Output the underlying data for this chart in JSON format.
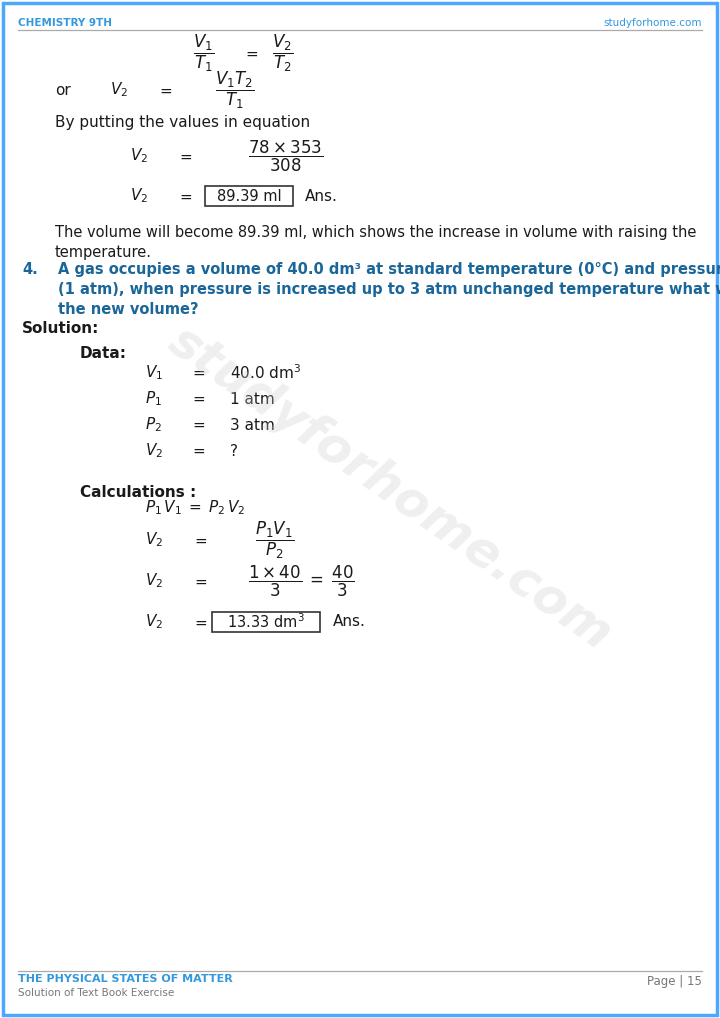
{
  "page_bg": "#ffffff",
  "border_color": "#4da6ff",
  "header_left": "CHEMISTRY 9TH",
  "header_right": "studyforhome.com",
  "header_color": "#3399dd",
  "footer_title": "THE PHYSICAL STATES OF MATTER",
  "footer_sub": "Solution of Text Book Exercise",
  "footer_page": "Page | 15",
  "footer_title_color": "#3399dd",
  "footer_sub_color": "#777777",
  "footer_page_color": "#777777",
  "body_color": "#1a1a1a",
  "question_color": "#1a6699",
  "line_color": "#aaaaaa",
  "box_color": "#333333",
  "watermark_color": "#cccccc"
}
